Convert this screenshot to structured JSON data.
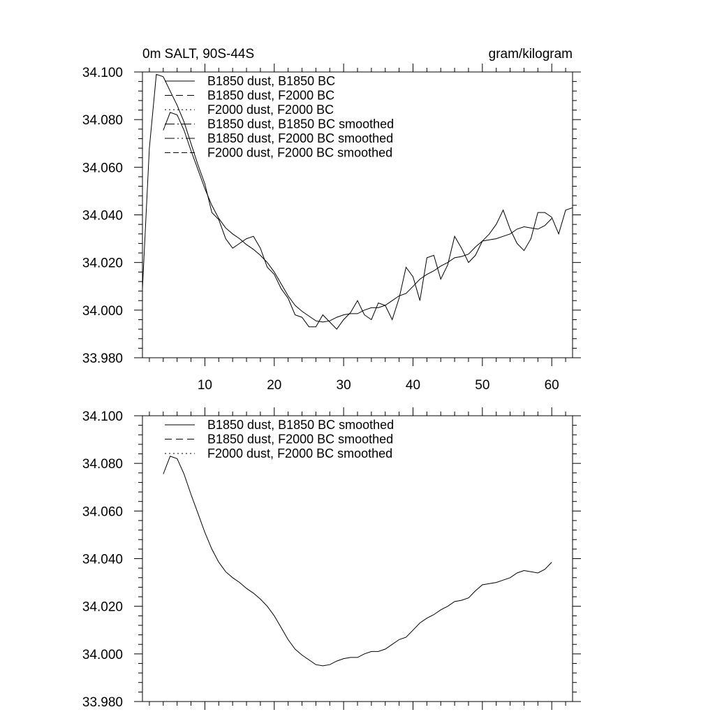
{
  "chart_data": [
    {
      "type": "line",
      "title_left": "0m SALT, 90S-44S",
      "title_right": "gram/kilogram",
      "xlabel": "",
      "ylabel": "",
      "xlim": [
        1,
        63
      ],
      "ylim": [
        33.98,
        34.1
      ],
      "x_ticks": [
        10,
        20,
        30,
        40,
        50,
        60
      ],
      "y_ticks": [
        "34.100",
        "34.080",
        "34.060",
        "34.040",
        "34.020",
        "34.000",
        "33.980"
      ],
      "y_tick_values": [
        34.1,
        34.08,
        34.06,
        34.04,
        34.02,
        34.0,
        33.98
      ],
      "show_x_tick_labels": true,
      "legend": [
        "B1850 dust, B1850 BC",
        "B1850 dust, F2000 BC",
        "F2000 dust, F2000 BC",
        "B1850 dust, B1850 BC smoothed",
        "B1850 dust, F2000 BC smoothed",
        "F2000 dust, F2000 BC smoothed"
      ],
      "legend_dash": [
        "",
        "10,6",
        "2,4",
        "14,4,2,4",
        "14,4,2,4,2,4",
        "8,4"
      ],
      "series": [
        {
          "name": "B1850 dust, B1850 BC",
          "x": [
            1,
            2,
            3,
            4,
            5,
            6,
            7,
            8,
            9,
            10,
            11,
            12,
            13,
            14,
            15,
            16,
            17,
            18,
            19,
            20,
            21,
            22,
            23,
            24,
            25,
            26,
            27,
            28,
            29,
            30,
            31,
            32,
            33,
            34,
            35,
            36,
            37,
            38,
            39,
            40,
            41,
            42,
            43,
            44,
            45,
            46,
            47,
            48,
            49,
            50,
            51,
            52,
            53,
            54,
            55,
            56,
            57,
            58,
            59,
            60,
            61,
            62,
            63
          ],
          "values": [
            34.009,
            34.068,
            34.099,
            34.098,
            34.092,
            34.086,
            34.079,
            34.07,
            34.061,
            34.053,
            34.041,
            34.038,
            34.03,
            34.026,
            34.028,
            34.03,
            34.031,
            34.026,
            34.018,
            34.015,
            34.009,
            34.005,
            33.998,
            33.997,
            33.993,
            33.993,
            33.998,
            33.995,
            33.992,
            33.996,
            33.999,
            34.004,
            33.998,
            33.996,
            34.003,
            34.002,
            33.996,
            34.005,
            34.018,
            34.014,
            34.004,
            34.022,
            34.023,
            34.013,
            34.019,
            34.031,
            34.026,
            34.02,
            34.023,
            34.029,
            34.032,
            34.036,
            34.042,
            34.034,
            34.028,
            34.025,
            34.03,
            34.041,
            34.041,
            34.039,
            34.032,
            34.042,
            34.043
          ]
        },
        {
          "name": "B1850 dust, F2000 BC",
          "x": [],
          "values": []
        },
        {
          "name": "F2000 dust, F2000 BC",
          "x": [],
          "values": []
        },
        {
          "name": "B1850 dust, B1850 BC smoothed",
          "x": [
            4,
            5,
            6,
            7,
            8,
            9,
            10,
            11,
            12,
            13,
            14,
            15,
            16,
            17,
            18,
            19,
            20,
            21,
            22,
            23,
            24,
            25,
            26,
            27,
            28,
            29,
            30,
            31,
            32,
            33,
            34,
            35,
            36,
            37,
            38,
            39,
            40,
            41,
            42,
            43,
            44,
            45,
            46,
            47,
            48,
            49,
            50,
            51,
            52,
            53,
            54,
            55,
            56,
            57,
            58,
            59,
            60
          ],
          "values": [
            34.0755,
            34.083,
            34.082,
            34.0755,
            34.067,
            34.059,
            34.051,
            34.044,
            34.0385,
            34.0345,
            34.032,
            34.03,
            34.0275,
            34.0255,
            34.023,
            34.02,
            34.016,
            34.011,
            34.006,
            34.002,
            33.9995,
            33.9975,
            33.9955,
            33.995,
            33.9955,
            33.997,
            33.998,
            33.9985,
            33.9985,
            34.0,
            34.001,
            34.001,
            34.002,
            34.004,
            34.006,
            34.007,
            34.01,
            34.013,
            34.015,
            34.0165,
            34.0185,
            34.02,
            34.022,
            34.0225,
            34.0235,
            34.0265,
            34.029,
            34.0295,
            34.03,
            34.031,
            34.032,
            34.034,
            34.035,
            34.0345,
            34.034,
            34.0355,
            34.0385
          ]
        },
        {
          "name": "B1850 dust, F2000 BC smoothed",
          "x": [],
          "values": []
        },
        {
          "name": "F2000 dust, F2000 BC smoothed",
          "x": [],
          "values": []
        }
      ]
    },
    {
      "type": "line",
      "xlim": [
        1,
        63
      ],
      "ylim": [
        33.98,
        34.1
      ],
      "x_ticks": [
        10,
        20,
        30,
        40,
        50,
        60
      ],
      "y_ticks": [
        "34.100",
        "34.080",
        "34.060",
        "34.040",
        "34.020",
        "34.000",
        "33.980"
      ],
      "y_tick_values": [
        34.1,
        34.08,
        34.06,
        34.04,
        34.02,
        34.0,
        33.98
      ],
      "show_x_tick_labels": false,
      "legend": [
        "B1850 dust, B1850 BC smoothed",
        "B1850 dust, F2000 BC smoothed",
        "F2000 dust, F2000 BC smoothed"
      ],
      "legend_dash": [
        "",
        "10,6",
        "2,4"
      ],
      "series": [
        {
          "name": "B1850 dust, B1850 BC smoothed",
          "x": [
            4,
            5,
            6,
            7,
            8,
            9,
            10,
            11,
            12,
            13,
            14,
            15,
            16,
            17,
            18,
            19,
            20,
            21,
            22,
            23,
            24,
            25,
            26,
            27,
            28,
            29,
            30,
            31,
            32,
            33,
            34,
            35,
            36,
            37,
            38,
            39,
            40,
            41,
            42,
            43,
            44,
            45,
            46,
            47,
            48,
            49,
            50,
            51,
            52,
            53,
            54,
            55,
            56,
            57,
            58,
            59,
            60
          ],
          "values": [
            34.0755,
            34.083,
            34.082,
            34.0755,
            34.067,
            34.059,
            34.051,
            34.044,
            34.0385,
            34.0345,
            34.032,
            34.03,
            34.0275,
            34.0255,
            34.023,
            34.02,
            34.016,
            34.011,
            34.006,
            34.002,
            33.9995,
            33.9975,
            33.9955,
            33.995,
            33.9955,
            33.997,
            33.998,
            33.9985,
            33.9985,
            34.0,
            34.001,
            34.001,
            34.002,
            34.004,
            34.006,
            34.007,
            34.01,
            34.013,
            34.015,
            34.0165,
            34.0185,
            34.02,
            34.022,
            34.0225,
            34.0235,
            34.0265,
            34.029,
            34.0295,
            34.03,
            34.031,
            34.032,
            34.034,
            34.035,
            34.0345,
            34.034,
            34.0355,
            34.0385
          ]
        },
        {
          "name": "B1850 dust, F2000 BC smoothed",
          "x": [],
          "values": []
        },
        {
          "name": "F2000 dust, F2000 BC smoothed",
          "x": [],
          "values": []
        }
      ]
    }
  ]
}
